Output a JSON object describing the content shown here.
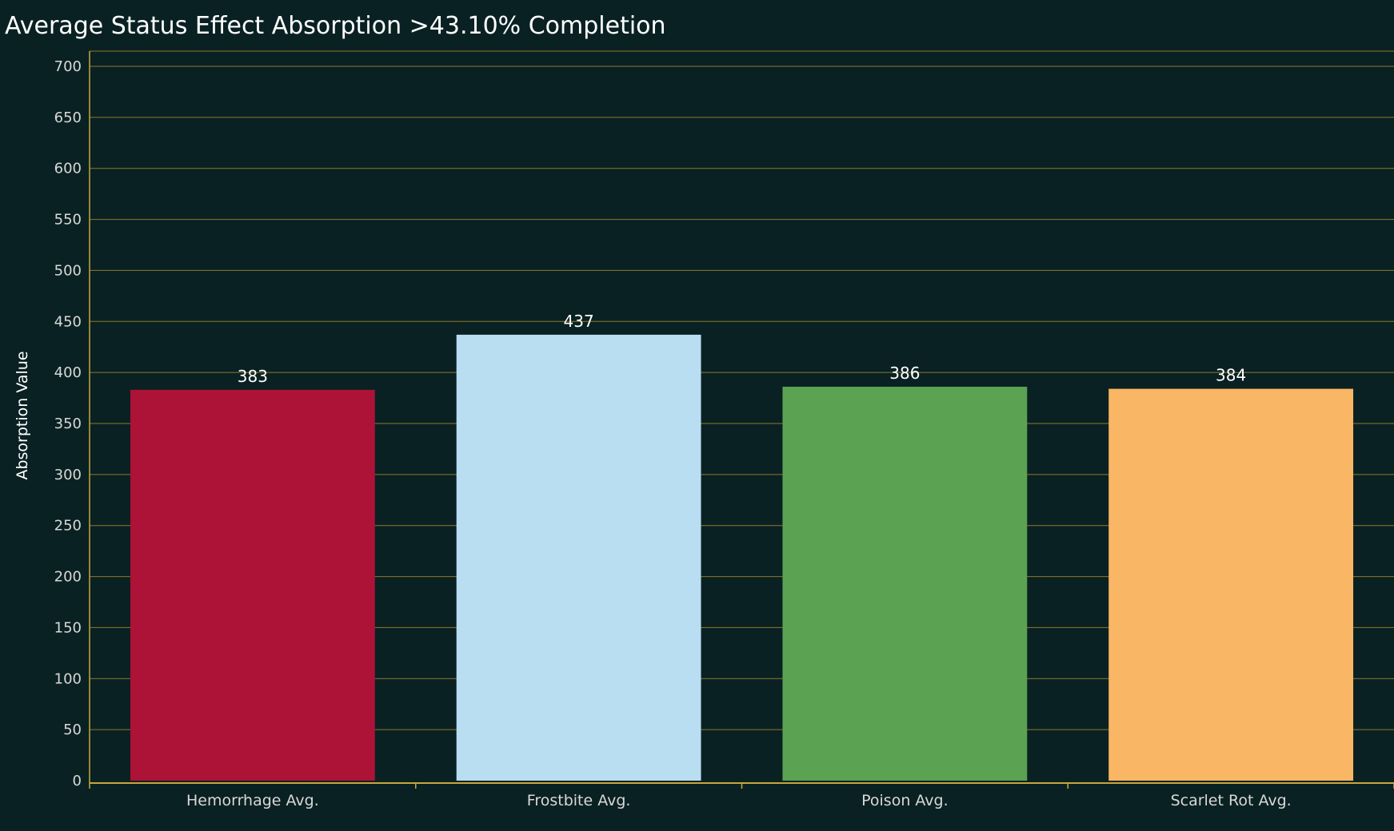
{
  "chart_data": {
    "type": "bar",
    "title": "Average Status Effect Absorption >43.10% Completion",
    "xlabel": "",
    "ylabel": "Absorption Value",
    "ylim": [
      0,
      700
    ],
    "yticks": [
      0,
      50,
      100,
      150,
      200,
      250,
      300,
      350,
      400,
      450,
      500,
      550,
      600,
      650,
      700
    ],
    "grid": true,
    "categories": [
      "Hemorrhage Avg.",
      "Frostbite Avg.",
      "Poison Avg.",
      "Scarlet Rot Avg."
    ],
    "values": [
      383,
      437,
      386,
      384
    ],
    "data_labels": [
      "383",
      "437",
      "386",
      "384"
    ],
    "colors": [
      "#ad1237",
      "#b9ddf1",
      "#5ba353",
      "#f9b664"
    ],
    "background_color": "#0a2123",
    "grid_color": "#8a7a2a",
    "axis_color": "#c9a63a"
  }
}
